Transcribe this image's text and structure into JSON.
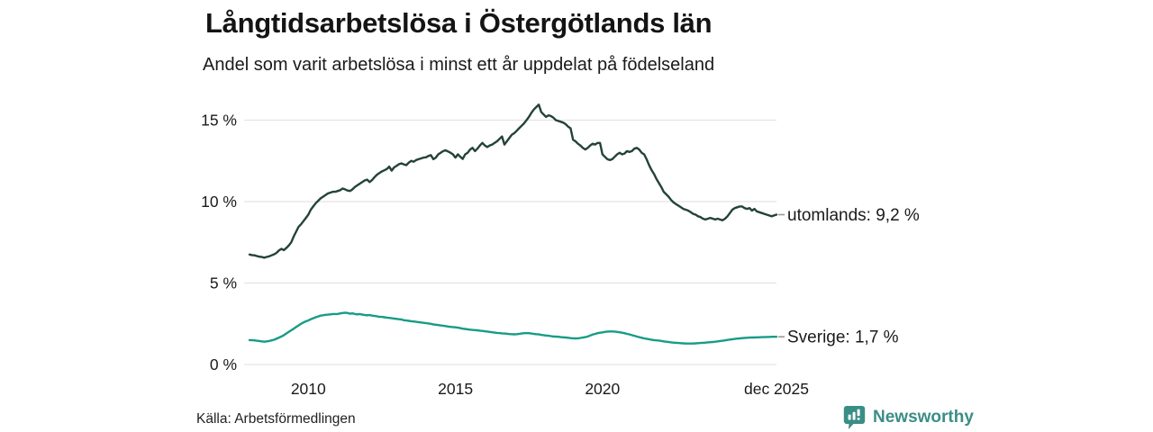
{
  "chart_data": {
    "type": "line",
    "title": "Långtidsarbetslösa i Östergötlands län",
    "subtitle": "Andel som varit arbetslösa i minst ett år uppdelat på födelseland",
    "x_unit": "month",
    "x_start": "2008-01",
    "x_end": "2025-12",
    "ylim": [
      0,
      16.7
    ],
    "grid": true,
    "grid_color": "#e4e4e6",
    "text_color": "#1a1a1a",
    "dash_color": "#999999",
    "y_gridlines": [
      {
        "value": 0,
        "label": "0 %"
      },
      {
        "value": 5,
        "label": "5 %"
      },
      {
        "value": 10,
        "label": "10 %"
      },
      {
        "value": 15,
        "label": "15 %"
      }
    ],
    "x_ticks": [
      {
        "label": "2010",
        "month": 24
      },
      {
        "label": "2015",
        "month": 84
      },
      {
        "label": "2020",
        "month": 144
      },
      {
        "label": "dec 2025",
        "month": 215
      }
    ],
    "series": [
      {
        "name": "utomlands",
        "label": "utomlands: 9,2 %",
        "end_value_text": "9,2 %",
        "color": "#24423b",
        "values": [
          6.75,
          6.72,
          6.7,
          6.66,
          6.62,
          6.6,
          6.56,
          6.6,
          6.64,
          6.7,
          6.76,
          6.85,
          7.0,
          7.1,
          7.02,
          7.15,
          7.3,
          7.5,
          7.85,
          8.15,
          8.45,
          8.6,
          8.8,
          9.0,
          9.2,
          9.5,
          9.7,
          9.9,
          10.05,
          10.2,
          10.3,
          10.4,
          10.5,
          10.55,
          10.6,
          10.6,
          10.65,
          10.7,
          10.8,
          10.75,
          10.68,
          10.65,
          10.75,
          10.9,
          11.0,
          11.1,
          11.2,
          11.3,
          11.35,
          11.2,
          11.32,
          11.5,
          11.65,
          11.75,
          11.85,
          11.92,
          12.0,
          12.15,
          11.9,
          12.1,
          12.2,
          12.3,
          12.35,
          12.28,
          12.24,
          12.4,
          12.5,
          12.45,
          12.55,
          12.6,
          12.65,
          12.7,
          12.72,
          12.8,
          12.85,
          12.6,
          12.7,
          12.9,
          13.0,
          13.1,
          13.15,
          13.08,
          13.0,
          12.9,
          12.7,
          12.9,
          12.75,
          12.62,
          12.9,
          13.0,
          13.2,
          13.3,
          13.1,
          13.25,
          13.45,
          13.6,
          13.45,
          13.35,
          13.45,
          13.5,
          13.6,
          13.7,
          13.85,
          14.0,
          13.5,
          13.7,
          13.9,
          14.1,
          14.2,
          14.35,
          14.5,
          14.65,
          14.8,
          15.0,
          15.2,
          15.45,
          15.65,
          15.8,
          15.95,
          15.5,
          15.35,
          15.2,
          15.3,
          15.25,
          15.15,
          15.0,
          14.95,
          14.9,
          14.85,
          14.75,
          14.6,
          14.5,
          13.8,
          13.7,
          13.55,
          13.45,
          13.3,
          13.2,
          13.3,
          13.45,
          13.55,
          13.5,
          13.6,
          13.6,
          12.9,
          12.75,
          12.6,
          12.55,
          12.6,
          12.75,
          12.9,
          13.0,
          12.9,
          12.95,
          13.1,
          13.05,
          13.1,
          13.25,
          13.3,
          13.2,
          13.0,
          12.9,
          12.6,
          12.25,
          11.95,
          11.7,
          11.4,
          11.15,
          10.9,
          10.6,
          10.45,
          10.3,
          10.1,
          9.95,
          9.85,
          9.75,
          9.65,
          9.55,
          9.5,
          9.45,
          9.35,
          9.25,
          9.2,
          9.1,
          9.05,
          8.95,
          8.9,
          8.95,
          9.0,
          8.95,
          8.9,
          8.95,
          8.9,
          8.85,
          8.95,
          9.1,
          9.3,
          9.5,
          9.6,
          9.65,
          9.7,
          9.7,
          9.6,
          9.55,
          9.6,
          9.45,
          9.55,
          9.4,
          9.35,
          9.3,
          9.25,
          9.2,
          9.15,
          9.1,
          9.15,
          9.2
        ]
      },
      {
        "name": "sverige",
        "label": "Sverige: 1,7 %",
        "end_value_text": "1,7 %",
        "color": "#169c85",
        "values": [
          1.5,
          1.5,
          1.48,
          1.46,
          1.44,
          1.42,
          1.4,
          1.42,
          1.44,
          1.48,
          1.52,
          1.58,
          1.65,
          1.72,
          1.8,
          1.9,
          2.0,
          2.1,
          2.2,
          2.3,
          2.4,
          2.5,
          2.58,
          2.65,
          2.7,
          2.78,
          2.84,
          2.9,
          2.95,
          3.0,
          3.02,
          3.05,
          3.06,
          3.08,
          3.1,
          3.1,
          3.1,
          3.14,
          3.16,
          3.18,
          3.16,
          3.12,
          3.14,
          3.1,
          3.08,
          3.1,
          3.06,
          3.04,
          3.02,
          3.04,
          3.0,
          2.98,
          2.96,
          2.92,
          2.92,
          2.9,
          2.88,
          2.86,
          2.84,
          2.82,
          2.8,
          2.78,
          2.76,
          2.72,
          2.7,
          2.68,
          2.66,
          2.64,
          2.62,
          2.6,
          2.58,
          2.56,
          2.54,
          2.52,
          2.5,
          2.46,
          2.44,
          2.42,
          2.4,
          2.38,
          2.36,
          2.33,
          2.31,
          2.3,
          2.28,
          2.26,
          2.23,
          2.2,
          2.18,
          2.16,
          2.14,
          2.12,
          2.11,
          2.1,
          2.08,
          2.06,
          2.04,
          2.02,
          2.0,
          1.98,
          1.96,
          1.94,
          1.93,
          1.91,
          1.9,
          1.89,
          1.87,
          1.86,
          1.85,
          1.86,
          1.88,
          1.9,
          1.92,
          1.93,
          1.92,
          1.9,
          1.88,
          1.86,
          1.85,
          1.82,
          1.8,
          1.78,
          1.76,
          1.74,
          1.72,
          1.71,
          1.7,
          1.68,
          1.67,
          1.66,
          1.64,
          1.62,
          1.61,
          1.6,
          1.61,
          1.63,
          1.65,
          1.68,
          1.72,
          1.78,
          1.84,
          1.88,
          1.92,
          1.95,
          1.97,
          2.0,
          2.02,
          2.03,
          2.03,
          2.02,
          2.0,
          1.98,
          1.95,
          1.92,
          1.88,
          1.85,
          1.8,
          1.76,
          1.72,
          1.68,
          1.64,
          1.6,
          1.58,
          1.55,
          1.52,
          1.5,
          1.48,
          1.47,
          1.45,
          1.42,
          1.4,
          1.38,
          1.36,
          1.34,
          1.33,
          1.32,
          1.31,
          1.3,
          1.29,
          1.29,
          1.29,
          1.29,
          1.3,
          1.31,
          1.32,
          1.33,
          1.34,
          1.36,
          1.37,
          1.38,
          1.4,
          1.42,
          1.44,
          1.46,
          1.48,
          1.51,
          1.53,
          1.55,
          1.57,
          1.59,
          1.6,
          1.62,
          1.63,
          1.64,
          1.65,
          1.66,
          1.66,
          1.67,
          1.67,
          1.68,
          1.68,
          1.69,
          1.69,
          1.7,
          1.7,
          1.7
        ]
      }
    ]
  },
  "footer": {
    "source": "Källa: Arbetsförmedlingen",
    "brand_name": "Newsworthy",
    "brand_color": "#3a8e85"
  }
}
